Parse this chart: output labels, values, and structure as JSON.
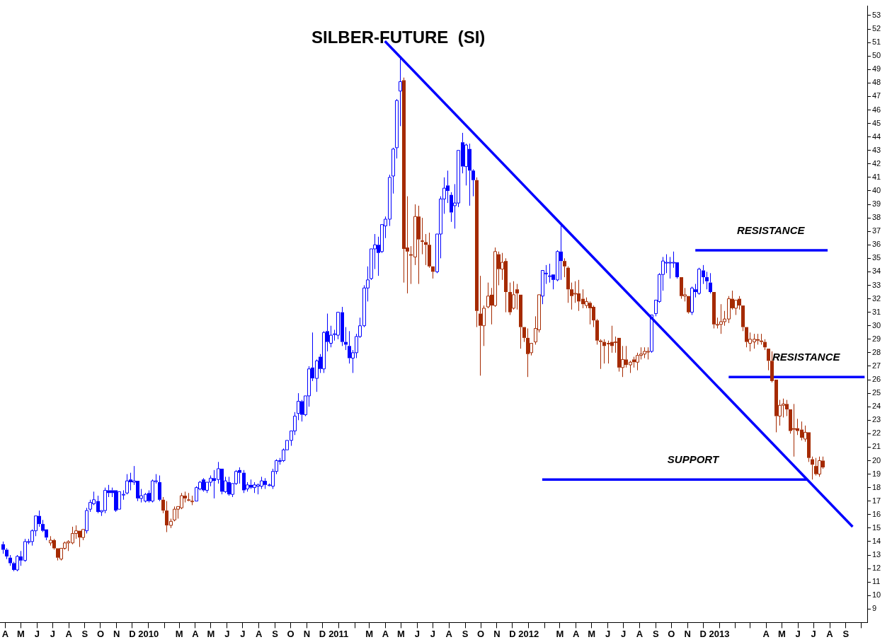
{
  "chart_data": {
    "type": "candlestick",
    "title": "SILBER-FUTURE  (SI)",
    "xlim": [
      "2009-03-22",
      "2013-10-12"
    ],
    "ylim": [
      8,
      53.7
    ],
    "yticks": [
      9,
      10,
      11,
      12,
      13,
      14,
      15,
      16,
      17,
      18,
      19,
      20,
      21,
      22,
      23,
      24,
      25,
      26,
      27,
      28,
      29,
      30,
      31,
      32,
      33,
      34,
      35,
      36,
      37,
      38,
      39,
      40,
      41,
      42,
      43,
      44,
      45,
      46,
      47,
      48,
      49,
      50,
      51,
      52,
      53
    ],
    "xticks": [
      {
        "value": "2009-04",
        "label": "A"
      },
      {
        "value": "2009-05",
        "label": "M"
      },
      {
        "value": "2009-06",
        "label": "J"
      },
      {
        "value": "2009-07",
        "label": "J"
      },
      {
        "value": "2009-08",
        "label": "A"
      },
      {
        "value": "2009-09",
        "label": "S"
      },
      {
        "value": "2009-10",
        "label": "O"
      },
      {
        "value": "2009-11",
        "label": "N"
      },
      {
        "value": "2009-12",
        "label": "D"
      },
      {
        "value": "2010-01",
        "label": "2010"
      },
      {
        "value": "2010-02",
        "label": null
      },
      {
        "value": "2010-03",
        "label": "M"
      },
      {
        "value": "2010-04",
        "label": "A"
      },
      {
        "value": "2010-05",
        "label": "M"
      },
      {
        "value": "2010-06",
        "label": "J"
      },
      {
        "value": "2010-07",
        "label": "J"
      },
      {
        "value": "2010-08",
        "label": "A"
      },
      {
        "value": "2010-09",
        "label": "S"
      },
      {
        "value": "2010-10",
        "label": "O"
      },
      {
        "value": "2010-11",
        "label": "N"
      },
      {
        "value": "2010-12",
        "label": "D"
      },
      {
        "value": "2011-01",
        "label": "2011"
      },
      {
        "value": "2011-02",
        "label": null
      },
      {
        "value": "2011-03",
        "label": "M"
      },
      {
        "value": "2011-04",
        "label": "A"
      },
      {
        "value": "2011-05",
        "label": "M"
      },
      {
        "value": "2011-06",
        "label": "J"
      },
      {
        "value": "2011-07",
        "label": "J"
      },
      {
        "value": "2011-08",
        "label": "A"
      },
      {
        "value": "2011-09",
        "label": "S"
      },
      {
        "value": "2011-10",
        "label": "O"
      },
      {
        "value": "2011-11",
        "label": "N"
      },
      {
        "value": "2011-12",
        "label": "D"
      },
      {
        "value": "2012-01",
        "label": "2012"
      },
      {
        "value": "2012-02",
        "label": null
      },
      {
        "value": "2012-03",
        "label": "M"
      },
      {
        "value": "2012-04",
        "label": "A"
      },
      {
        "value": "2012-05",
        "label": "M"
      },
      {
        "value": "2012-06",
        "label": "J"
      },
      {
        "value": "2012-07",
        "label": "J"
      },
      {
        "value": "2012-08",
        "label": "A"
      },
      {
        "value": "2012-09",
        "label": "S"
      },
      {
        "value": "2012-10",
        "label": "O"
      },
      {
        "value": "2012-11",
        "label": "N"
      },
      {
        "value": "2012-12",
        "label": "D"
      },
      {
        "value": "2013-01",
        "label": "2013"
      },
      {
        "value": "2013-02",
        "label": null
      },
      {
        "value": "2013-03",
        "label": null
      },
      {
        "value": "2013-04",
        "label": "A"
      },
      {
        "value": "2013-05",
        "label": "M"
      },
      {
        "value": "2013-06",
        "label": "J"
      },
      {
        "value": "2013-07",
        "label": "J"
      },
      {
        "value": "2013-08",
        "label": "A"
      },
      {
        "value": "2013-09",
        "label": "S"
      },
      {
        "value": "2013-10",
        "label": null
      }
    ],
    "series": [
      {
        "type": "line",
        "color": "#0000ff",
        "x": [
          "2011-03-31",
          "2013-09-14"
        ],
        "values": [
          51.1,
          15.1
        ]
      },
      {
        "type": "line",
        "name": "RESISTANCE",
        "color": "#0000ff",
        "x": [
          "2012-11-16",
          "2013-07-28"
        ],
        "values": [
          35.6,
          35.6
        ]
      },
      {
        "type": "line",
        "name": "RESISTANCE",
        "color": "#0000ff",
        "x": [
          "2013-01-19",
          "2013-10-07"
        ],
        "values": [
          26.2,
          26.2
        ]
      },
      {
        "type": "line",
        "name": "SUPPORT",
        "color": "#0000ff",
        "x": [
          "2012-01-27",
          "2013-06-18"
        ],
        "values": [
          18.6,
          18.6
        ]
      },
      {
        "x": [
          "2009-03-27",
          "2009-04-03",
          "2009-04-10",
          "2009-04-17",
          "2009-04-24",
          "2009-05-01",
          "2009-05-08",
          "2009-05-15",
          "2009-05-22",
          "2009-05-29",
          "2009-06-05",
          "2009-06-12",
          "2009-06-19",
          "2009-06-26",
          "2009-07-03",
          "2009-07-10",
          "2009-07-17",
          "2009-07-24",
          "2009-07-31",
          "2009-08-07",
          "2009-08-14",
          "2009-08-21",
          "2009-08-28",
          "2009-09-04",
          "2009-09-11",
          "2009-09-18",
          "2009-09-25",
          "2009-10-02",
          "2009-10-09",
          "2009-10-16",
          "2009-10-23",
          "2009-10-30",
          "2009-11-06",
          "2009-11-13",
          "2009-11-20",
          "2009-11-27",
          "2009-12-04",
          "2009-12-11",
          "2009-12-18",
          "2009-12-25",
          "2010-01-01",
          "2010-01-08",
          "2010-01-15",
          "2010-01-22",
          "2010-01-29",
          "2010-02-05",
          "2010-02-12",
          "2010-02-19",
          "2010-02-26",
          "2010-03-05",
          "2010-03-12",
          "2010-03-19",
          "2010-03-26",
          "2010-04-02",
          "2010-04-09",
          "2010-04-16",
          "2010-04-23",
          "2010-04-30",
          "2010-05-07",
          "2010-05-14",
          "2010-05-21",
          "2010-05-28",
          "2010-06-04",
          "2010-06-11",
          "2010-06-18",
          "2010-06-25",
          "2010-07-02",
          "2010-07-09",
          "2010-07-16",
          "2010-07-23",
          "2010-07-30",
          "2010-08-06",
          "2010-08-13",
          "2010-08-20",
          "2010-08-27",
          "2010-09-03",
          "2010-09-10",
          "2010-09-17",
          "2010-09-24",
          "2010-10-01",
          "2010-10-08",
          "2010-10-15",
          "2010-10-22",
          "2010-10-29",
          "2010-11-05",
          "2010-11-12",
          "2010-11-19",
          "2010-11-26",
          "2010-12-03",
          "2010-12-10",
          "2010-12-17",
          "2010-12-24",
          "2010-12-31",
          "2011-01-07",
          "2011-01-14",
          "2011-01-21",
          "2011-01-28",
          "2011-02-04",
          "2011-02-11",
          "2011-02-18",
          "2011-02-25",
          "2011-03-04",
          "2011-03-11",
          "2011-03-18",
          "2011-03-25",
          "2011-04-01",
          "2011-04-08",
          "2011-04-15",
          "2011-04-22",
          "2011-04-29",
          "2011-05-06",
          "2011-05-13",
          "2011-05-20",
          "2011-05-27",
          "2011-06-03",
          "2011-06-10",
          "2011-06-17",
          "2011-06-24",
          "2011-07-01",
          "2011-07-08",
          "2011-07-15",
          "2011-07-22",
          "2011-07-29",
          "2011-08-05",
          "2011-08-12",
          "2011-08-19",
          "2011-08-26",
          "2011-09-02",
          "2011-09-09",
          "2011-09-16",
          "2011-09-23",
          "2011-09-30",
          "2011-10-07",
          "2011-10-14",
          "2011-10-21",
          "2011-10-28",
          "2011-11-04",
          "2011-11-11",
          "2011-11-18",
          "2011-11-25",
          "2011-12-02",
          "2011-12-09",
          "2011-12-16",
          "2011-12-23",
          "2011-12-30",
          "2012-01-06",
          "2012-01-13",
          "2012-01-20",
          "2012-01-27",
          "2012-02-03",
          "2012-02-10",
          "2012-02-17",
          "2012-02-24",
          "2012-03-02",
          "2012-03-09",
          "2012-03-16",
          "2012-03-23",
          "2012-03-30",
          "2012-04-06",
          "2012-04-13",
          "2012-04-20",
          "2012-04-27",
          "2012-05-04",
          "2012-05-11",
          "2012-05-18",
          "2012-05-25",
          "2012-06-01",
          "2012-06-08",
          "2012-06-15",
          "2012-06-22",
          "2012-06-29",
          "2012-07-06",
          "2012-07-13",
          "2012-07-20",
          "2012-07-27",
          "2012-08-03",
          "2012-08-10",
          "2012-08-17",
          "2012-08-24",
          "2012-08-31",
          "2012-09-07",
          "2012-09-14",
          "2012-09-21",
          "2012-09-28",
          "2012-10-05",
          "2012-10-12",
          "2012-10-19",
          "2012-10-26",
          "2012-11-02",
          "2012-11-09",
          "2012-11-16",
          "2012-11-23",
          "2012-11-30",
          "2012-12-07",
          "2012-12-14",
          "2012-12-21",
          "2012-12-28",
          "2013-01-04",
          "2013-01-11",
          "2013-01-18",
          "2013-01-25",
          "2013-02-01",
          "2013-02-08",
          "2013-02-15",
          "2013-02-22",
          "2013-03-01",
          "2013-03-08",
          "2013-03-15",
          "2013-03-22",
          "2013-03-29",
          "2013-04-05",
          "2013-04-12",
          "2013-04-19",
          "2013-04-26",
          "2013-05-03",
          "2013-05-10",
          "2013-05-17",
          "2013-05-24",
          "2013-05-31",
          "2013-06-07",
          "2013-06-14",
          "2013-06-21",
          "2013-06-28",
          "2013-07-05",
          "2013-07-12",
          "2013-07-19"
        ],
        "ohlc": [
          [
            13.8,
            14.0,
            13.1,
            13.4
          ],
          [
            13.4,
            13.5,
            12.7,
            12.9
          ],
          [
            12.8,
            13.0,
            12.2,
            12.4
          ],
          [
            12.4,
            12.5,
            11.8,
            11.9
          ],
          [
            11.9,
            13.0,
            11.8,
            12.9
          ],
          [
            12.9,
            13.3,
            12.2,
            12.6
          ],
          [
            12.6,
            14.2,
            12.5,
            14.0
          ],
          [
            14.0,
            14.2,
            13.8,
            14.0
          ],
          [
            14.0,
            14.9,
            13.7,
            14.8
          ],
          [
            14.8,
            15.9,
            14.4,
            15.9
          ],
          [
            15.9,
            16.3,
            15.1,
            15.3
          ],
          [
            15.3,
            15.6,
            14.7,
            14.8
          ],
          [
            14.9,
            14.9,
            14.1,
            14.3
          ],
          [
            13.9,
            14.4,
            13.7,
            14.1
          ],
          [
            14.1,
            14.2,
            13.4,
            13.5
          ],
          [
            13.5,
            13.5,
            12.6,
            12.8
          ],
          [
            12.7,
            13.5,
            12.6,
            13.5
          ],
          [
            13.5,
            14.0,
            13.4,
            13.9
          ],
          [
            13.9,
            14.1,
            13.3,
            14.0
          ],
          [
            13.9,
            15.1,
            13.8,
            14.6
          ],
          [
            14.6,
            15.2,
            14.2,
            14.8
          ],
          [
            14.8,
            14.8,
            13.6,
            14.3
          ],
          [
            14.3,
            14.9,
            14.1,
            14.9
          ],
          [
            14.8,
            16.5,
            14.6,
            16.3
          ],
          [
            16.4,
            17.1,
            16.2,
            16.9
          ],
          [
            16.8,
            17.7,
            16.7,
            17.1
          ],
          [
            17.0,
            17.4,
            16.1,
            16.2
          ],
          [
            16.2,
            16.3,
            15.9,
            16.3
          ],
          [
            16.3,
            18.0,
            16.1,
            17.8
          ],
          [
            17.8,
            18.2,
            17.3,
            17.6
          ],
          [
            17.8,
            18.0,
            17.3,
            17.6
          ],
          [
            17.8,
            17.8,
            16.2,
            16.3
          ],
          [
            16.4,
            17.7,
            16.4,
            17.7
          ],
          [
            17.5,
            17.8,
            17.1,
            17.5
          ],
          [
            17.6,
            19.0,
            17.5,
            18.5
          ],
          [
            18.6,
            19.1,
            17.8,
            18.4
          ],
          [
            18.4,
            19.6,
            18.2,
            18.5
          ],
          [
            18.5,
            18.5,
            17.0,
            17.2
          ],
          [
            17.2,
            17.9,
            16.9,
            17.4
          ],
          [
            17.0,
            17.6,
            16.9,
            17.5
          ],
          [
            17.6,
            17.8,
            16.9,
            17.0
          ],
          [
            17.0,
            18.6,
            16.9,
            18.5
          ],
          [
            18.5,
            19.0,
            18.3,
            18.5
          ],
          [
            18.4,
            18.9,
            17.0,
            17.1
          ],
          [
            17.1,
            17.3,
            16.1,
            16.3
          ],
          [
            16.3,
            17.0,
            14.7,
            15.2
          ],
          [
            15.2,
            15.7,
            15.0,
            15.5
          ],
          [
            15.6,
            16.6,
            15.5,
            16.4
          ],
          [
            16.4,
            16.6,
            15.7,
            16.6
          ],
          [
            16.5,
            17.6,
            16.4,
            17.4
          ],
          [
            17.4,
            17.7,
            16.9,
            17.2
          ],
          [
            17.1,
            17.6,
            17.0,
            17.1
          ],
          [
            17.0,
            17.4,
            16.7,
            17.0
          ],
          [
            17.0,
            18.1,
            17.0,
            18.0
          ],
          [
            17.9,
            18.5,
            17.8,
            18.4
          ],
          [
            18.6,
            18.7,
            17.7,
            17.8
          ],
          [
            17.8,
            18.4,
            17.6,
            18.4
          ],
          [
            18.4,
            18.9,
            18.1,
            18.7
          ],
          [
            18.7,
            19.3,
            17.2,
            18.5
          ],
          [
            18.6,
            19.9,
            18.3,
            19.4
          ],
          [
            19.4,
            19.4,
            17.5,
            17.7
          ],
          [
            17.7,
            18.8,
            17.6,
            18.5
          ],
          [
            18.4,
            18.8,
            17.4,
            17.5
          ],
          [
            17.5,
            18.3,
            17.3,
            18.3
          ],
          [
            18.3,
            19.3,
            18.2,
            19.2
          ],
          [
            19.3,
            19.5,
            18.3,
            19.1
          ],
          [
            19.1,
            19.3,
            17.6,
            17.8
          ],
          [
            17.9,
            18.4,
            17.7,
            18.2
          ],
          [
            18.2,
            18.6,
            17.9,
            18.0
          ],
          [
            18.0,
            18.4,
            17.6,
            18.2
          ],
          [
            18.1,
            18.3,
            17.5,
            18.2
          ],
          [
            18.1,
            18.8,
            17.9,
            18.5
          ],
          [
            18.5,
            18.7,
            17.9,
            18.2
          ],
          [
            18.2,
            18.3,
            18.1,
            18.2
          ],
          [
            18.1,
            19.4,
            17.9,
            19.2
          ],
          [
            19.2,
            20.1,
            19.0,
            20.0
          ],
          [
            20.0,
            20.2,
            19.7,
            20.0
          ],
          [
            20.0,
            20.9,
            19.9,
            20.8
          ],
          [
            20.8,
            21.5,
            20.8,
            21.5
          ],
          [
            21.5,
            22.2,
            21.1,
            22.2
          ],
          [
            22.2,
            23.6,
            21.9,
            23.3
          ],
          [
            23.5,
            25.0,
            23.0,
            24.4
          ],
          [
            24.4,
            24.5,
            22.9,
            23.4
          ],
          [
            23.4,
            24.8,
            23.3,
            24.8
          ],
          [
            24.8,
            27.0,
            24.0,
            26.8
          ],
          [
            26.9,
            29.5,
            25.9,
            26.1
          ],
          [
            26.1,
            27.5,
            25.1,
            27.4
          ],
          [
            27.7,
            27.9,
            26.5,
            26.8
          ],
          [
            26.8,
            29.6,
            26.5,
            29.5
          ],
          [
            29.6,
            30.9,
            28.1,
            28.8
          ],
          [
            28.7,
            30.0,
            28.4,
            29.3
          ],
          [
            29.4,
            29.7,
            28.9,
            29.4
          ],
          [
            29.3,
            31.0,
            29.0,
            31.0
          ],
          [
            31.0,
            31.4,
            28.5,
            28.8
          ],
          [
            28.8,
            29.9,
            28.2,
            28.6
          ],
          [
            28.5,
            29.6,
            27.2,
            27.6
          ],
          [
            27.6,
            28.2,
            26.5,
            28.0
          ],
          [
            28.0,
            29.4,
            27.6,
            29.2
          ],
          [
            29.2,
            30.6,
            29.1,
            30.0
          ],
          [
            30.0,
            33.0,
            29.9,
            32.8
          ],
          [
            32.8,
            34.4,
            31.8,
            33.4
          ],
          [
            33.5,
            35.7,
            33.4,
            35.7
          ],
          [
            35.7,
            36.8,
            34.2,
            36.0
          ],
          [
            36.0,
            36.6,
            33.7,
            35.4
          ],
          [
            35.5,
            37.5,
            35.4,
            37.5
          ],
          [
            37.4,
            38.1,
            36.5,
            37.9
          ],
          [
            37.9,
            41.2,
            37.4,
            41.0
          ],
          [
            41.1,
            43.2,
            39.8,
            43.1
          ],
          [
            43.2,
            46.8,
            42.4,
            46.7
          ],
          [
            47.4,
            50.0,
            44.8,
            48.1
          ],
          [
            48.2,
            48.4,
            33.2,
            35.7
          ],
          [
            35.8,
            39.6,
            32.4,
            35.5
          ],
          [
            35.3,
            35.9,
            33.1,
            35.2
          ],
          [
            35.1,
            39.0,
            34.5,
            38.1
          ],
          [
            38.1,
            38.9,
            33.1,
            36.4
          ],
          [
            36.3,
            38.0,
            35.3,
            36.3
          ],
          [
            36.2,
            36.8,
            34.5,
            36.0
          ],
          [
            36.0,
            36.9,
            34.3,
            34.4
          ],
          [
            34.4,
            34.4,
            33.5,
            34.0
          ],
          [
            34.0,
            36.8,
            33.9,
            36.8
          ],
          [
            36.8,
            39.6,
            35.0,
            39.4
          ],
          [
            39.4,
            41.0,
            38.3,
            40.2
          ],
          [
            40.4,
            41.5,
            39.1,
            40.0
          ],
          [
            39.7,
            39.9,
            37.7,
            38.4
          ],
          [
            38.9,
            40.5,
            37.2,
            39.1
          ],
          [
            39.1,
            43.0,
            38.8,
            43.0
          ],
          [
            43.6,
            44.3,
            41.3,
            41.8
          ],
          [
            41.8,
            43.5,
            40.4,
            43.4
          ],
          [
            43.1,
            43.5,
            38.9,
            41.5
          ],
          [
            41.5,
            41.6,
            39.6,
            40.8
          ],
          [
            40.8,
            41.0,
            29.9,
            31.1
          ],
          [
            30.9,
            33.7,
            26.3,
            30.0
          ],
          [
            30.0,
            31.5,
            28.5,
            31.3
          ],
          [
            31.4,
            33.2,
            31.3,
            32.2
          ],
          [
            32.3,
            32.8,
            30.1,
            31.5
          ],
          [
            31.5,
            35.8,
            31.4,
            35.5
          ],
          [
            35.3,
            35.5,
            33.0,
            34.2
          ],
          [
            34.2,
            35.4,
            33.4,
            34.7
          ],
          [
            34.8,
            35.0,
            31.0,
            32.5
          ],
          [
            32.5,
            33.2,
            30.8,
            31.0
          ],
          [
            31.3,
            33.3,
            31.2,
            32.3
          ],
          [
            32.7,
            33.1,
            31.2,
            32.4
          ],
          [
            32.3,
            32.3,
            28.3,
            29.9
          ],
          [
            29.9,
            29.9,
            28.8,
            29.1
          ],
          [
            29.1,
            29.8,
            26.2,
            27.9
          ],
          [
            28.0,
            28.7,
            27.8,
            28.7
          ],
          [
            28.8,
            30.7,
            28.6,
            29.8
          ],
          [
            29.7,
            32.3,
            29.5,
            32.3
          ],
          [
            32.2,
            34.1,
            31.6,
            34.1
          ],
          [
            33.9,
            34.5,
            33.1,
            33.9
          ],
          [
            33.7,
            34.6,
            33.2,
            33.7
          ],
          [
            33.8,
            33.8,
            32.7,
            33.4
          ],
          [
            33.4,
            35.6,
            33.3,
            35.5
          ],
          [
            35.5,
            37.6,
            33.4,
            34.8
          ],
          [
            34.8,
            35.0,
            33.6,
            34.4
          ],
          [
            34.3,
            34.4,
            31.7,
            32.7
          ],
          [
            32.7,
            33.2,
            31.2,
            32.2
          ],
          [
            32.4,
            33.3,
            31.7,
            32.4
          ],
          [
            32.4,
            33.4,
            31.1,
            31.8
          ],
          [
            32.0,
            32.7,
            31.3,
            31.6
          ],
          [
            31.5,
            32.1,
            31.3,
            31.8
          ],
          [
            31.7,
            31.8,
            30.1,
            31.3
          ],
          [
            31.4,
            31.5,
            29.9,
            30.4
          ],
          [
            30.4,
            30.5,
            28.6,
            28.9
          ],
          [
            28.9,
            29.0,
            26.8,
            28.8
          ],
          [
            28.8,
            29.0,
            27.2,
            28.5
          ],
          [
            28.7,
            28.9,
            27.2,
            28.7
          ],
          [
            28.8,
            30.0,
            28.0,
            28.5
          ],
          [
            28.8,
            29.2,
            28.0,
            28.8
          ],
          [
            29.1,
            29.1,
            26.6,
            26.9
          ],
          [
            26.9,
            28.5,
            26.2,
            27.5
          ],
          [
            27.5,
            28.5,
            26.9,
            27.1
          ],
          [
            27.1,
            27.4,
            26.5,
            27.3
          ],
          [
            27.5,
            27.7,
            26.9,
            27.3
          ],
          [
            27.3,
            28.0,
            26.7,
            27.8
          ],
          [
            27.8,
            28.4,
            27.5,
            27.9
          ],
          [
            27.9,
            28.4,
            27.6,
            28.1
          ],
          [
            28.1,
            28.4,
            27.5,
            28.1
          ],
          [
            28.1,
            30.8,
            28.0,
            30.8
          ],
          [
            30.9,
            31.9,
            30.7,
            31.9
          ],
          [
            31.8,
            33.9,
            31.7,
            33.8
          ],
          [
            33.8,
            35.1,
            32.6,
            34.8
          ],
          [
            34.7,
            35.3,
            33.9,
            34.7
          ],
          [
            34.7,
            35.1,
            33.5,
            34.7
          ],
          [
            34.7,
            35.5,
            34.3,
            34.7
          ],
          [
            34.7,
            34.7,
            33.5,
            33.6
          ],
          [
            33.6,
            33.6,
            32.0,
            32.2
          ],
          [
            32.2,
            32.8,
            31.8,
            32.3
          ],
          [
            32.2,
            32.2,
            30.9,
            31.0
          ],
          [
            31.0,
            32.9,
            30.8,
            32.8
          ],
          [
            32.7,
            33.1,
            32.1,
            32.5
          ],
          [
            32.4,
            34.3,
            32.3,
            34.2
          ],
          [
            34.1,
            34.5,
            33.1,
            33.6
          ],
          [
            33.6,
            34.0,
            32.7,
            33.3
          ],
          [
            33.2,
            33.9,
            32.4,
            32.5
          ],
          [
            32.5,
            32.5,
            29.8,
            30.1
          ],
          [
            30.1,
            30.6,
            29.8,
            30.1
          ],
          [
            30.1,
            31.6,
            29.4,
            30.3
          ],
          [
            30.3,
            31.1,
            30.0,
            30.5
          ],
          [
            30.5,
            32.2,
            30.2,
            32.0
          ],
          [
            32.0,
            32.6,
            31.2,
            31.3
          ],
          [
            31.3,
            31.9,
            30.8,
            31.9
          ],
          [
            32.0,
            32.2,
            31.2,
            31.5
          ],
          [
            31.5,
            31.5,
            29.6,
            29.9
          ],
          [
            29.9,
            29.9,
            28.4,
            28.8
          ],
          [
            28.7,
            29.5,
            28.1,
            29.0
          ],
          [
            28.8,
            29.4,
            28.3,
            29.0
          ],
          [
            29.0,
            29.4,
            28.6,
            28.9
          ],
          [
            28.9,
            29.4,
            28.6,
            28.8
          ],
          [
            28.8,
            29.0,
            28.2,
            28.4
          ],
          [
            28.3,
            28.3,
            26.7,
            27.4
          ],
          [
            27.4,
            28.1,
            25.8,
            25.9
          ],
          [
            26.0,
            26.0,
            22.1,
            23.3
          ],
          [
            23.3,
            24.5,
            22.6,
            24.1
          ],
          [
            24.1,
            24.6,
            23.2,
            24.2
          ],
          [
            24.2,
            24.5,
            23.3,
            23.8
          ],
          [
            23.8,
            23.8,
            22.0,
            22.2
          ],
          [
            22.4,
            24.2,
            20.3,
            22.3
          ],
          [
            22.4,
            23.1,
            21.9,
            22.2
          ],
          [
            22.3,
            22.9,
            21.5,
            21.7
          ],
          [
            21.6,
            22.6,
            21.4,
            22.1
          ],
          [
            22.1,
            22.1,
            19.9,
            20.2
          ],
          [
            20.1,
            20.3,
            18.6,
            19.7
          ],
          [
            19.6,
            20.2,
            18.9,
            19.0
          ],
          [
            19.0,
            20.3,
            18.8,
            20.0
          ],
          [
            20.0,
            20.3,
            19.4,
            19.5
          ]
        ],
        "colors": [
          "#0000ff",
          "#0000ff",
          "#0000ff",
          "#0000ff",
          "#0000ff",
          "#0000ff",
          "#0000ff",
          "#0000ff",
          "#0000ff",
          "#0000ff",
          "#0000ff",
          "#0000ff",
          "#0000ff",
          "#a52a00",
          "#a52a00",
          "#a52a00",
          "#a52a00",
          "#a52a00",
          "#a52a00",
          "#a52a00",
          "#a52a00",
          "#a52a00",
          "#a52a00",
          "#0000ff",
          "#0000ff",
          "#0000ff",
          "#0000ff",
          "#0000ff",
          "#0000ff",
          "#0000ff",
          "#0000ff",
          "#0000ff",
          "#0000ff",
          "#0000ff",
          "#0000ff",
          "#0000ff",
          "#0000ff",
          "#0000ff",
          "#0000ff",
          "#0000ff",
          "#0000ff",
          "#0000ff",
          "#0000ff",
          "#0000ff",
          "#a52a00",
          "#a52a00",
          "#a52a00",
          "#a52a00",
          "#a52a00",
          "#a52a00",
          "#a52a00",
          "#a52a00",
          "#a52a00",
          "#0000ff",
          "#0000ff",
          "#0000ff",
          "#0000ff",
          "#0000ff",
          "#0000ff",
          "#0000ff",
          "#0000ff",
          "#0000ff",
          "#0000ff",
          "#0000ff",
          "#0000ff",
          "#0000ff",
          "#0000ff",
          "#0000ff",
          "#0000ff",
          "#0000ff",
          "#0000ff",
          "#0000ff",
          "#0000ff",
          "#0000ff",
          "#0000ff",
          "#0000ff",
          "#0000ff",
          "#0000ff",
          "#0000ff",
          "#0000ff",
          "#0000ff",
          "#0000ff",
          "#0000ff",
          "#0000ff",
          "#0000ff",
          "#0000ff",
          "#0000ff",
          "#0000ff",
          "#0000ff",
          "#0000ff",
          "#0000ff",
          "#0000ff",
          "#0000ff",
          "#0000ff",
          "#0000ff",
          "#0000ff",
          "#0000ff",
          "#0000ff",
          "#0000ff",
          "#0000ff",
          "#0000ff",
          "#0000ff",
          "#0000ff",
          "#0000ff",
          "#0000ff",
          "#0000ff",
          "#0000ff",
          "#0000ff",
          "#0000ff",
          "#0000ff",
          "#a52a00",
          "#a52a00",
          "#a52a00",
          "#a52a00",
          "#a52a00",
          "#a52a00",
          "#a52a00",
          "#a52a00",
          "#a52a00",
          "#0000ff",
          "#0000ff",
          "#0000ff",
          "#0000ff",
          "#0000ff",
          "#0000ff",
          "#0000ff",
          "#0000ff",
          "#0000ff",
          "#0000ff",
          "#0000ff",
          "#a52a00",
          "#a52a00",
          "#a52a00",
          "#a52a00",
          "#a52a00",
          "#a52a00",
          "#a52a00",
          "#a52a00",
          "#a52a00",
          "#a52a00",
          "#a52a00",
          "#a52a00",
          "#a52a00",
          "#a52a00",
          "#a52a00",
          "#a52a00",
          "#a52a00",
          "#a52a00",
          "#0000ff",
          "#0000ff",
          "#0000ff",
          "#0000ff",
          "#0000ff",
          "#0000ff",
          "#a52a00",
          "#a52a00",
          "#a52a00",
          "#a52a00",
          "#a52a00",
          "#a52a00",
          "#a52a00",
          "#a52a00",
          "#a52a00",
          "#a52a00",
          "#a52a00",
          "#a52a00",
          "#a52a00",
          "#a52a00",
          "#a52a00",
          "#a52a00",
          "#a52a00",
          "#a52a00",
          "#a52a00",
          "#a52a00",
          "#a52a00",
          "#a52a00",
          "#a52a00",
          "#a52a00",
          "#0000ff",
          "#0000ff",
          "#0000ff",
          "#0000ff",
          "#0000ff",
          "#0000ff",
          "#0000ff",
          "#0000ff",
          "#a52a00",
          "#a52a00",
          "#a52a00",
          "#0000ff",
          "#0000ff",
          "#0000ff",
          "#0000ff",
          "#0000ff",
          "#0000ff",
          "#a52a00",
          "#a52a00",
          "#a52a00",
          "#a52a00",
          "#a52a00",
          "#a52a00",
          "#a52a00",
          "#a52a00",
          "#a52a00",
          "#a52a00",
          "#a52a00",
          "#a52a00",
          "#a52a00",
          "#a52a00",
          "#a52a00",
          "#a52a00",
          "#a52a00",
          "#a52a00",
          "#a52a00",
          "#a52a00",
          "#a52a00",
          "#a52a00",
          "#a52a00",
          "#a52a00",
          "#a52a00",
          "#a52a00",
          "#a52a00",
          "#a52a00",
          "#a52a00",
          "#a52a00",
          "#a52a00"
        ]
      }
    ]
  }
}
